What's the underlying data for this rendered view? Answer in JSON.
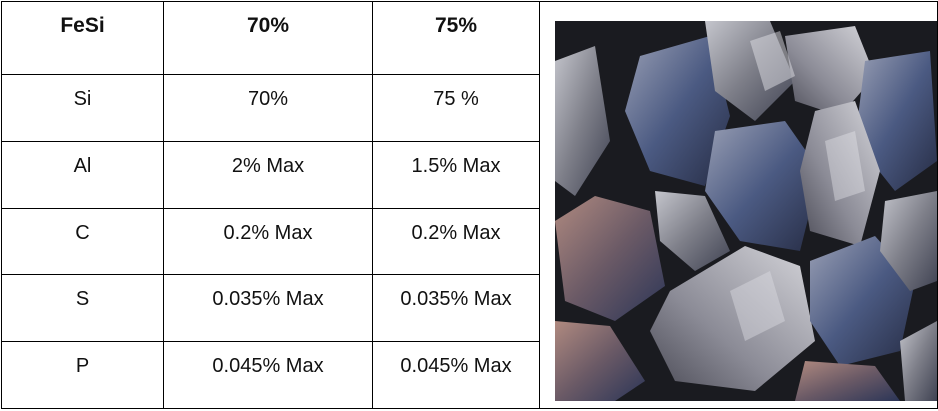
{
  "table": {
    "header": [
      "FeSi",
      "70%",
      "75%"
    ],
    "rows": [
      [
        "Si",
        "70%",
        "75 %"
      ],
      [
        "Al",
        "2% Max",
        "1.5% Max"
      ],
      [
        "C",
        "0.2% Max",
        "0.2% Max"
      ],
      [
        "S",
        "0.035% Max",
        "0.035% Max"
      ],
      [
        "P",
        "0.045% Max",
        "0.045% Max"
      ]
    ]
  },
  "image": {
    "subject": "ferrosilicon-lumps",
    "colors": [
      "#8e8d98",
      "#4f5970",
      "#2a3a68",
      "#a07d75",
      "#c9c9cf"
    ]
  }
}
